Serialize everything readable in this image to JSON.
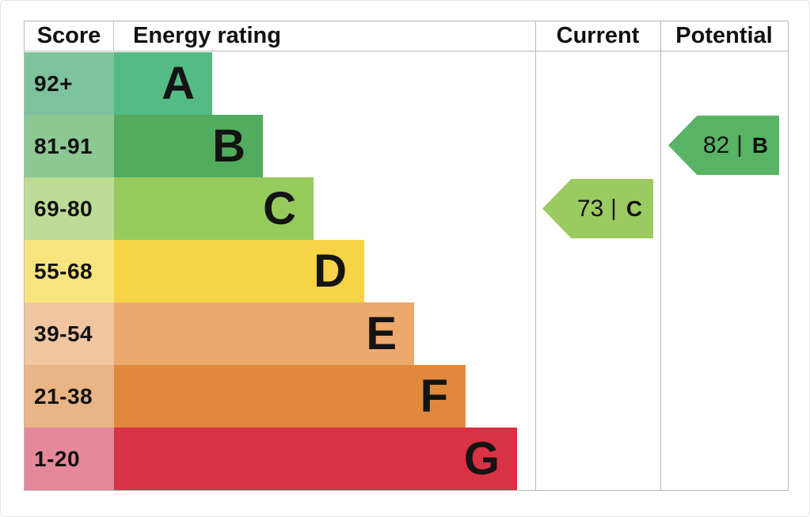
{
  "header": {
    "score": "Score",
    "energy_rating": "Energy rating",
    "current": "Current",
    "potential": "Potential"
  },
  "bands": [
    {
      "range": "92+",
      "letter": "A",
      "bar_color": "#55bb84",
      "cell_color": "#7fc29e"
    },
    {
      "range": "81-91",
      "letter": "B",
      "bar_color": "#51ad5d",
      "cell_color": "#8cc794"
    },
    {
      "range": "69-80",
      "letter": "C",
      "bar_color": "#97ca5d",
      "cell_color": "#bcdc95"
    },
    {
      "range": "55-68",
      "letter": "D",
      "bar_color": "#f7d447",
      "cell_color": "#f8e47d"
    },
    {
      "range": "39-54",
      "letter": "E",
      "bar_color": "#eda96c",
      "cell_color": "#efc69f"
    },
    {
      "range": "21-38",
      "letter": "F",
      "bar_color": "#e0883c",
      "cell_color": "#e9b586"
    },
    {
      "range": "1-20",
      "letter": "G",
      "bar_color": "#d83245",
      "cell_color": "#e4889a"
    }
  ],
  "current": {
    "score": "73",
    "separator": "|",
    "band": "C",
    "arrow_color": "#9bca61"
  },
  "potential": {
    "score": "82",
    "separator": "|",
    "band": "B",
    "arrow_color": "#58b464"
  },
  "chart_data": {
    "type": "bar",
    "title": "Energy rating",
    "categories": [
      "A",
      "B",
      "C",
      "D",
      "E",
      "F",
      "G"
    ],
    "score_ranges": [
      "92+",
      "81-91",
      "69-80",
      "55-68",
      "39-54",
      "21-38",
      "1-20"
    ],
    "bar_relative_lengths": [
      124,
      188,
      252,
      316,
      379,
      444,
      509
    ],
    "columns": [
      "Score",
      "Energy rating",
      "Current",
      "Potential"
    ],
    "current_rating": {
      "score": 73,
      "band": "C"
    },
    "potential_rating": {
      "score": 82,
      "band": "B"
    },
    "legend_position": "none",
    "grid": false
  }
}
